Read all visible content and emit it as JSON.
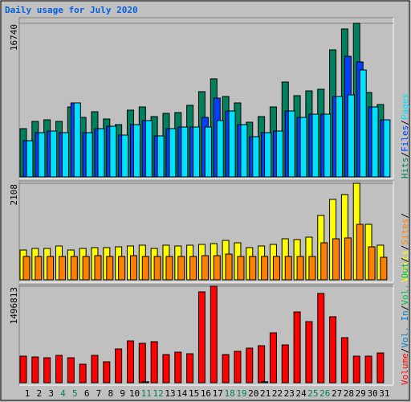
{
  "chart_data": [
    {
      "type": "bar",
      "title": "Daily usage for July 2020",
      "ylim": [
        0,
        16740
      ],
      "yticks": [
        16740
      ],
      "series": [
        {
          "name": "Hits",
          "color": "#00805c",
          "values": [
            5258,
            6047,
            6222,
            6047,
            7625,
            6485,
            7099,
            6310,
            5697,
            7274,
            7625,
            6573,
            6924,
            7011,
            7800,
            9290,
            10692,
            8764,
            8063,
            5960,
            6573,
            7625,
            10342,
            8852,
            9378,
            9553,
            13847,
            16126,
            16740,
            9202,
            7888
          ]
        },
        {
          "name": "Files",
          "color": "#0040ff",
          "values": [
            3944,
            4820,
            4995,
            4820,
            8063,
            4820,
            5258,
            5521,
            4557,
            5697,
            6135,
            4470,
            5258,
            5434,
            5434,
            6485,
            8589,
            7186,
            5697,
            4382,
            4820,
            4995,
            7186,
            6485,
            6836,
            6836,
            8764,
            13146,
            12533,
            7625,
            6222
          ]
        },
        {
          "name": "Pages",
          "color": "#00e0ff",
          "values": [
            3944,
            4820,
            4995,
            4820,
            8063,
            4820,
            5258,
            5521,
            4557,
            5697,
            6135,
            4470,
            5258,
            5434,
            5434,
            5434,
            6135,
            7186,
            5697,
            4382,
            4820,
            4995,
            7186,
            6485,
            6836,
            6836,
            8764,
            8939,
            11656,
            7625,
            6222
          ]
        }
      ]
    },
    {
      "type": "bar",
      "ylim": [
        0,
        2108
      ],
      "yticks": [
        2108
      ],
      "series": [
        {
          "name": "Visits",
          "color": "#ffff00",
          "values": [
            650,
            685,
            685,
            738,
            650,
            685,
            703,
            703,
            720,
            738,
            756,
            685,
            756,
            738,
            756,
            773,
            791,
            861,
            808,
            703,
            738,
            773,
            896,
            879,
            931,
            1406,
            1757,
            1862,
            2108,
            1212,
            756
          ]
        },
        {
          "name": "Sites",
          "color": "#ff8000",
          "values": [
            510,
            510,
            510,
            510,
            510,
            510,
            527,
            510,
            510,
            527,
            510,
            510,
            510,
            510,
            510,
            527,
            527,
            562,
            510,
            510,
            510,
            510,
            510,
            510,
            510,
            808,
            896,
            914,
            1212,
            720,
            492
          ]
        }
      ]
    },
    {
      "type": "bar",
      "ylim": [
        0,
        1496813
      ],
      "yticks": [
        1496813
      ],
      "categories": [
        "1",
        "2",
        "3",
        "4",
        "5",
        "6",
        "7",
        "8",
        "9",
        "10",
        "11",
        "12",
        "13",
        "14",
        "15",
        "16",
        "17",
        "18",
        "19",
        "20",
        "21",
        "22",
        "23",
        "24",
        "25",
        "26",
        "27",
        "28",
        "29",
        "30",
        "31"
      ],
      "category_colors": [
        "#000000",
        "#000000",
        "#000000",
        "#00805c",
        "#00805c",
        "#000000",
        "#000000",
        "#000000",
        "#000000",
        "#000000",
        "#00805c",
        "#00805c",
        "#000000",
        "#000000",
        "#000000",
        "#000000",
        "#000000",
        "#00805c",
        "#00805c",
        "#000000",
        "#000000",
        "#000000",
        "#000000",
        "#000000",
        "#00805c",
        "#00805c",
        "#000000",
        "#000000",
        "#000000",
        "#000000",
        "#000000"
      ],
      "series": [
        {
          "name": "Volume",
          "color": "#ff0000",
          "values": [
            411609,
            399136,
            386663,
            424082,
            386663,
            286879,
            424082,
            324298,
            523866,
            648596,
            611177,
            636123,
            436555,
            473974,
            449028,
            1409449,
            1496813,
            436555,
            486447,
            536339,
            573758,
            773326,
            586231,
            1097624,
            947948,
            1384503,
            1022786,
            698488,
            411609,
            411609,
            461501
          ]
        },
        {
          "name": "Vol. In",
          "color": "#0080c0",
          "values": [
            0,
            0,
            0,
            0,
            0,
            0,
            0,
            0,
            0,
            0,
            15000,
            0,
            0,
            0,
            0,
            0,
            0,
            0,
            0,
            0,
            15000,
            0,
            0,
            0,
            0,
            0,
            0,
            0,
            0,
            0,
            0
          ]
        },
        {
          "name": "Vol. Out",
          "color": "#00c040",
          "values": [
            0,
            0,
            0,
            0,
            0,
            0,
            0,
            0,
            0,
            0,
            0,
            0,
            0,
            0,
            0,
            0,
            0,
            0,
            0,
            0,
            0,
            0,
            0,
            0,
            0,
            0,
            0,
            0,
            0,
            0,
            0
          ]
        }
      ]
    }
  ]
}
